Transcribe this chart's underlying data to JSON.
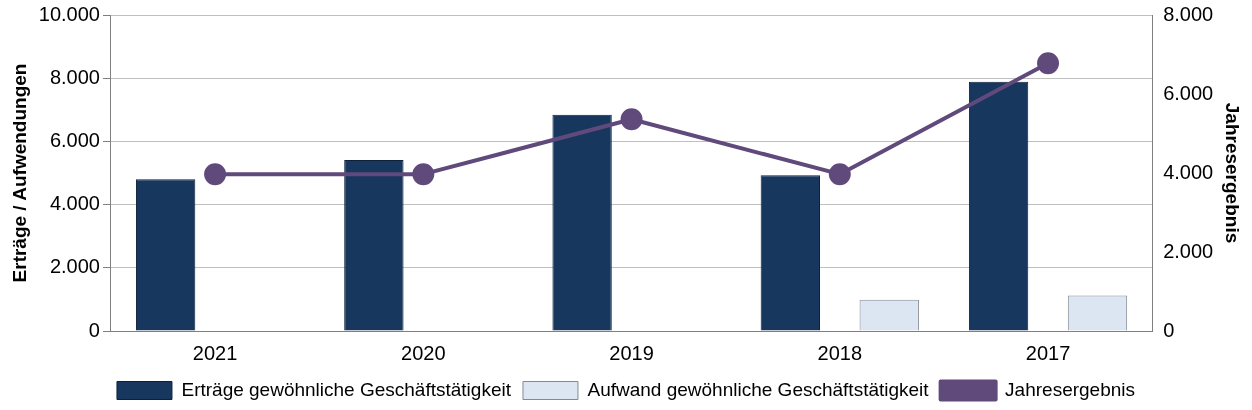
{
  "chart_data": {
    "type": "bar",
    "categories": [
      "2021",
      "2020",
      "2019",
      "2018",
      "2017"
    ],
    "ylabel": "Erträge / Aufwendungen",
    "y2label": "Jahresergebnis",
    "series": [
      {
        "name": "Erträge gewöhnliche Geschäftstätigkeit",
        "color": "#17375e",
        "values": [
          4800,
          5410,
          6840,
          4930,
          7890
        ]
      },
      {
        "name": "Aufwand gewöhnliche Geschäftstätigkeit",
        "color": "#dce6f2",
        "values": [
          null,
          null,
          null,
          990,
          1120
        ]
      },
      {
        "name": "Jahresergebnis",
        "type": "line",
        "axis": "y2",
        "color": "#604a7b",
        "values": [
          3970,
          3970,
          5360,
          3970,
          6780
        ]
      }
    ],
    "ylim": [
      0,
      10000
    ],
    "yticks": [
      {
        "value": 0,
        "label": "0"
      },
      {
        "value": 2000,
        "label": "2.000"
      },
      {
        "value": 4000,
        "label": "4.000"
      },
      {
        "value": 6000,
        "label": "6.000"
      },
      {
        "value": 8000,
        "label": "8.000"
      },
      {
        "value": 10000,
        "label": "10.000"
      }
    ],
    "y2lim": [
      0,
      8000
    ],
    "y2ticks": [
      {
        "value": 0,
        "label": "0"
      },
      {
        "value": 2000,
        "label": "2.000"
      },
      {
        "value": 4000,
        "label": "4.000"
      },
      {
        "value": 6000,
        "label": "6.000"
      },
      {
        "value": 8000,
        "label": "8.000"
      }
    ],
    "grid": "y",
    "legend": "bottom",
    "marker": "circle",
    "line_style": "solid"
  }
}
